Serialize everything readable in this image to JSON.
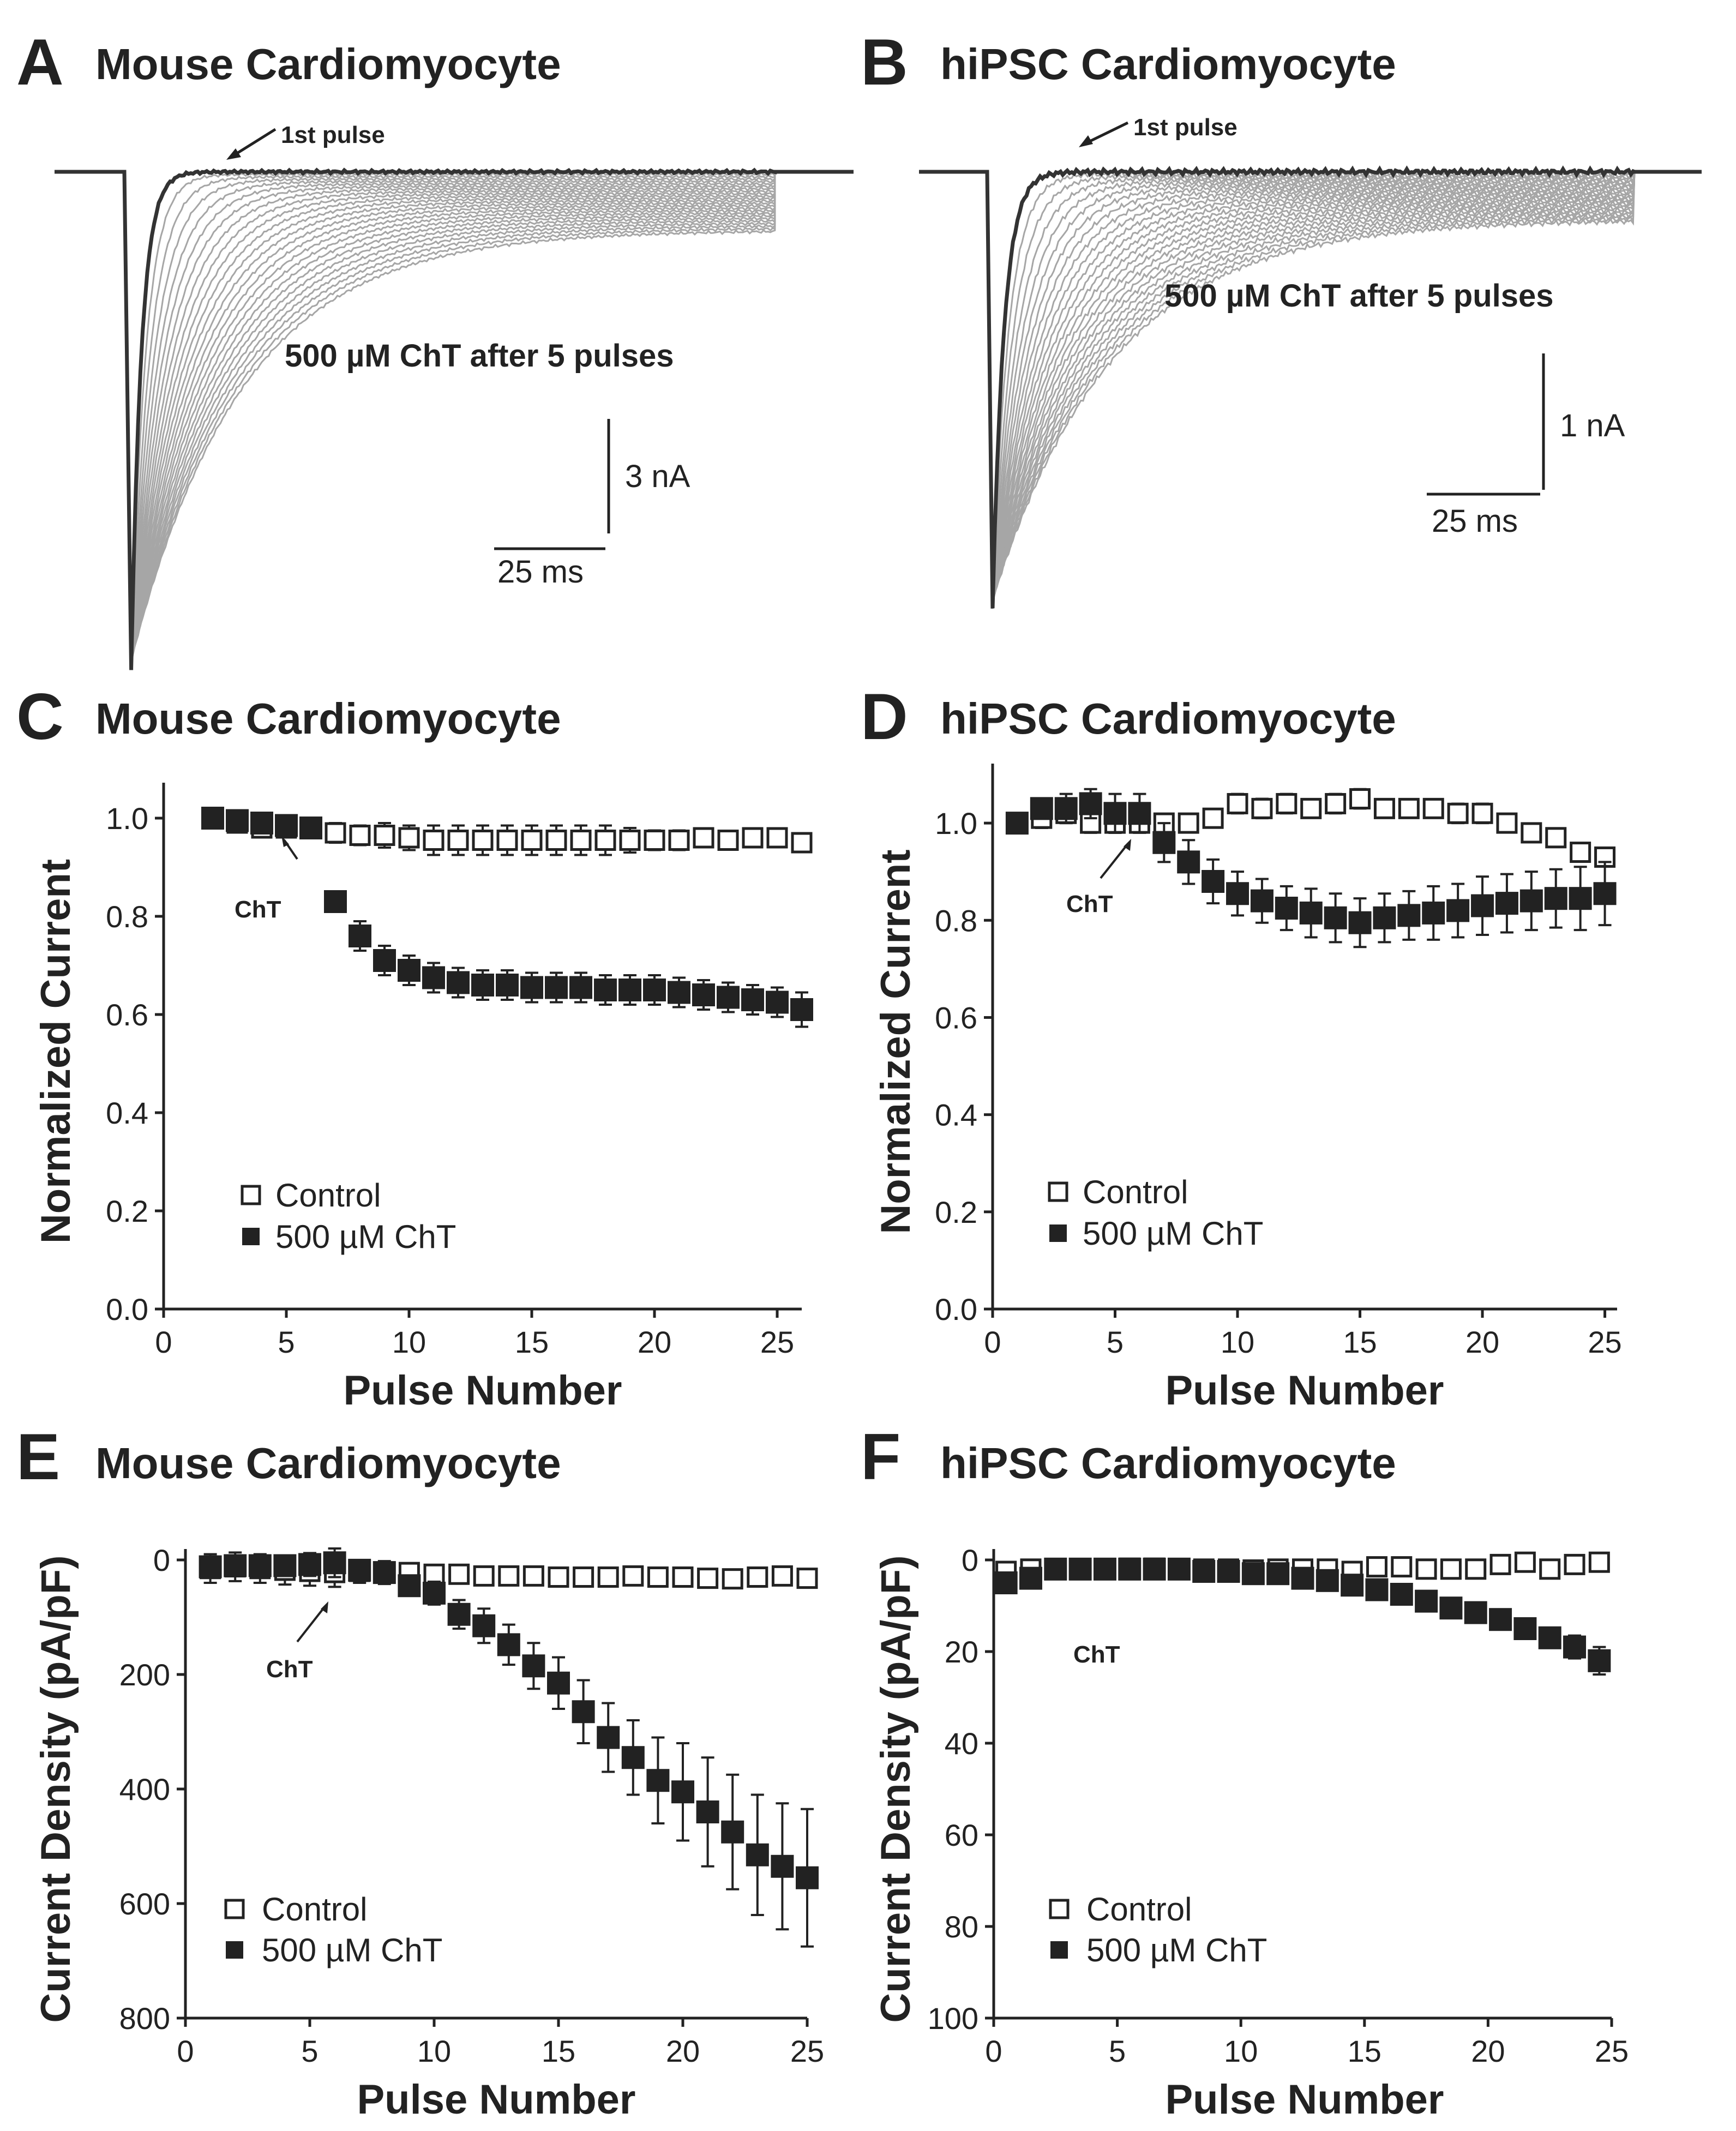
{
  "panels": {
    "A": {
      "letter": "A",
      "title": "Mouse Cardiomyocyte",
      "first_pulse": "1st pulse",
      "annotation": "500 µM ChT after 5 pulses",
      "scale_y": "3 nA",
      "scale_x": "25 ms"
    },
    "B": {
      "letter": "B",
      "title": "hiPSC Cardiomyocyte",
      "first_pulse": "1st pulse",
      "annotation": "500 µM ChT after 5 pulses",
      "scale_y": "1 nA",
      "scale_x": "25 ms"
    },
    "C": {
      "letter": "C",
      "title": "Mouse Cardiomyocyte",
      "cht_label": "ChT"
    },
    "D": {
      "letter": "D",
      "title": "hiPSC Cardiomyocyte",
      "cht_label": "ChT"
    },
    "E": {
      "letter": "E",
      "title": "Mouse Cardiomyocyte",
      "cht_label": "ChT"
    },
    "F": {
      "letter": "F",
      "title": "hiPSC Cardiomyocyte",
      "cht_label": "ChT"
    }
  },
  "legend": {
    "control": "Control",
    "treatment": "500 µM ChT"
  },
  "chart_data": [
    {
      "id": "A",
      "type": "line",
      "title": "Mouse Cardiomyocyte",
      "description_units": {
        "x": "ms",
        "y": "nA"
      },
      "traces": 25,
      "first_pulse_peak": -14.5,
      "steady_state_first": 0.0,
      "steady_state_last": -1.7,
      "scale_bar": {
        "time": "25 ms",
        "current": "3 nA"
      }
    },
    {
      "id": "B",
      "type": "line",
      "title": "hiPSC Cardiomyocyte",
      "description_units": {
        "x": "ms",
        "y": "nA"
      },
      "traces": 25,
      "first_pulse_peak": -3.2,
      "steady_state_first": 0.0,
      "steady_state_last": -0.35,
      "scale_bar": {
        "time": "25 ms",
        "current": "1 nA"
      }
    },
    {
      "id": "C",
      "type": "scatter",
      "title": "Mouse Cardiomyocyte",
      "xlabel": "Pulse Number",
      "ylabel": "Normalized Current",
      "xlim": [
        0,
        26
      ],
      "ylim": [
        0,
        1.05
      ],
      "xticks": [
        "0",
        "5",
        "10",
        "15",
        "20",
        "25"
      ],
      "yticks": [
        "0.0",
        "0.2",
        "0.4",
        "0.6",
        "0.8",
        "1.0"
      ],
      "series": [
        {
          "name": "Control",
          "marker": "open-square",
          "x": [
            2,
            3,
            4,
            5,
            6,
            7,
            8,
            9,
            10,
            11,
            12,
            13,
            14,
            15,
            16,
            17,
            18,
            19,
            20,
            21,
            22,
            23,
            24,
            25,
            26
          ],
          "values": [
            1.0,
            0.99,
            0.98,
            0.98,
            0.98,
            0.97,
            0.965,
            0.965,
            0.96,
            0.955,
            0.955,
            0.955,
            0.955,
            0.955,
            0.955,
            0.955,
            0.955,
            0.955,
            0.955,
            0.955,
            0.96,
            0.955,
            0.96,
            0.96,
            0.95
          ],
          "errors": [
            0.01,
            0.01,
            0.015,
            0.015,
            0.015,
            0.02,
            0.02,
            0.025,
            0.025,
            0.03,
            0.03,
            0.03,
            0.03,
            0.03,
            0.03,
            0.03,
            0.03,
            0.025,
            0.02,
            0.02,
            0.015,
            0.015,
            0.015,
            0.015,
            0.015
          ]
        },
        {
          "name": "500 µM ChT",
          "marker": "filled-square",
          "x": [
            2,
            3,
            4,
            5,
            6,
            7,
            8,
            9,
            10,
            11,
            12,
            13,
            14,
            15,
            16,
            17,
            18,
            19,
            20,
            21,
            22,
            23,
            24,
            25,
            26
          ],
          "values": [
            1.0,
            0.995,
            0.99,
            0.985,
            0.98,
            0.83,
            0.76,
            0.71,
            0.69,
            0.675,
            0.665,
            0.66,
            0.66,
            0.655,
            0.655,
            0.655,
            0.65,
            0.65,
            0.65,
            0.645,
            0.64,
            0.635,
            0.63,
            0.625,
            0.61
          ],
          "errors": [
            0.01,
            0.01,
            0.01,
            0.01,
            0.015,
            0.02,
            0.03,
            0.03,
            0.03,
            0.03,
            0.03,
            0.03,
            0.03,
            0.03,
            0.03,
            0.03,
            0.03,
            0.03,
            0.03,
            0.03,
            0.03,
            0.03,
            0.03,
            0.03,
            0.035
          ]
        }
      ]
    },
    {
      "id": "D",
      "type": "scatter",
      "title": "hiPSC Cardiomyocyte",
      "xlabel": "Pulse Number",
      "ylabel": "Normalized Current",
      "xlim": [
        0,
        25.5
      ],
      "ylim": [
        0,
        1.1
      ],
      "xticks": [
        "0",
        "5",
        "10",
        "15",
        "20",
        "25"
      ],
      "yticks": [
        "0.0",
        "0.2",
        "0.4",
        "0.6",
        "0.8",
        "1.0"
      ],
      "series": [
        {
          "name": "Control",
          "marker": "open-square",
          "x": [
            1,
            2,
            3,
            4,
            5,
            6,
            7,
            8,
            9,
            10,
            11,
            12,
            13,
            14,
            15,
            16,
            17,
            18,
            19,
            20,
            21,
            22,
            23,
            24,
            25
          ],
          "values": [
            1.0,
            1.01,
            1.02,
            1.0,
            1.0,
            1.0,
            1.0,
            1.0,
            1.01,
            1.04,
            1.03,
            1.04,
            1.03,
            1.04,
            1.05,
            1.03,
            1.03,
            1.03,
            1.02,
            1.02,
            1.0,
            0.98,
            0.97,
            0.94,
            0.93
          ],
          "errors": [
            0.005,
            0.02,
            0.02,
            0.02,
            0.02,
            0.015,
            0.01,
            0.01,
            0.015,
            0.02,
            0.02,
            0.02,
            0.01,
            0.02,
            0.02,
            0.01,
            0.01,
            0.01,
            0.02,
            0.02,
            0.01,
            0.01,
            0.01,
            0.015,
            0.015
          ]
        },
        {
          "name": "500 µM ChT",
          "marker": "filled-square",
          "x": [
            1,
            2,
            3,
            4,
            5,
            6,
            7,
            8,
            9,
            10,
            11,
            12,
            13,
            14,
            15,
            16,
            17,
            18,
            19,
            20,
            21,
            22,
            23,
            24,
            25
          ],
          "values": [
            1.0,
            1.03,
            1.03,
            1.04,
            1.02,
            1.02,
            0.96,
            0.92,
            0.88,
            0.855,
            0.84,
            0.825,
            0.815,
            0.805,
            0.795,
            0.805,
            0.81,
            0.815,
            0.82,
            0.83,
            0.835,
            0.84,
            0.845,
            0.845,
            0.855
          ],
          "errors": [
            0.005,
            0.02,
            0.03,
            0.03,
            0.04,
            0.04,
            0.04,
            0.045,
            0.045,
            0.045,
            0.045,
            0.045,
            0.05,
            0.05,
            0.05,
            0.05,
            0.05,
            0.055,
            0.055,
            0.06,
            0.06,
            0.06,
            0.06,
            0.065,
            0.065
          ]
        }
      ]
    },
    {
      "id": "E",
      "type": "scatter",
      "title": "Mouse Cardiomyocyte",
      "xlabel": "Pulse Number",
      "ylabel": "Current Density (pA/pF)",
      "xlim": [
        0,
        25
      ],
      "ylim": [
        0,
        800
      ],
      "y_inverted": true,
      "xticks": [
        "0",
        "5",
        "10",
        "15",
        "20",
        "25"
      ],
      "yticks": [
        "0",
        "200",
        "400",
        "600",
        "800"
      ],
      "series": [
        {
          "name": "Control",
          "marker": "open-square",
          "x": [
            1,
            2,
            3,
            4,
            5,
            6,
            7,
            8,
            9,
            10,
            11,
            12,
            13,
            14,
            15,
            16,
            17,
            18,
            19,
            20,
            21,
            22,
            23,
            24,
            25
          ],
          "values": [
            15,
            12,
            15,
            18,
            20,
            22,
            20,
            22,
            22,
            25,
            25,
            28,
            28,
            28,
            30,
            30,
            30,
            28,
            30,
            30,
            32,
            33,
            30,
            28,
            32
          ],
          "errors": [
            25,
            25,
            25,
            25,
            25,
            25,
            20,
            20,
            15,
            12,
            10,
            10,
            10,
            10,
            12,
            12,
            12,
            12,
            12,
            10,
            10,
            10,
            10,
            10,
            10
          ]
        },
        {
          "name": "500 µM ChT",
          "marker": "filled-square",
          "x": [
            1,
            2,
            3,
            4,
            5,
            6,
            7,
            8,
            9,
            10,
            11,
            12,
            13,
            14,
            15,
            16,
            17,
            18,
            19,
            20,
            21,
            22,
            23,
            24,
            25
          ],
          "values": [
            12,
            10,
            10,
            10,
            8,
            5,
            18,
            22,
            45,
            58,
            95,
            115,
            148,
            185,
            215,
            265,
            310,
            345,
            385,
            405,
            440,
            475,
            515,
            535,
            555
          ],
          "errors": [
            15,
            15,
            15,
            15,
            20,
            25,
            15,
            15,
            15,
            20,
            25,
            30,
            35,
            40,
            45,
            55,
            60,
            65,
            75,
            85,
            95,
            100,
            105,
            110,
            120
          ]
        }
      ]
    },
    {
      "id": "F",
      "type": "scatter",
      "title": "hiPSC Cardiomyocyte",
      "xlabel": "Pulse Number",
      "ylabel": "Current Density (pA/pF)",
      "xlim": [
        0,
        25
      ],
      "ylim": [
        0,
        100
      ],
      "y_inverted": true,
      "xticks": [
        "0",
        "5",
        "10",
        "15",
        "20",
        "25"
      ],
      "yticks": [
        "0",
        "20",
        "40",
        "60",
        "80",
        "100"
      ],
      "series": [
        {
          "name": "Control",
          "marker": "open-square",
          "x": [
            0.5,
            1.5,
            2.5,
            3.5,
            4.5,
            5.5,
            6.5,
            7.5,
            8.5,
            9.5,
            10.5,
            11.5,
            12.5,
            13.5,
            14.5,
            15.5,
            16.5,
            17.5,
            18.5,
            19.5,
            20.5,
            21.5,
            22.5,
            23.5,
            24.5
          ],
          "values": [
            2.5,
            2.0,
            2.0,
            2.0,
            2.0,
            1.8,
            1.8,
            2.0,
            2.0,
            2.0,
            2.2,
            2.0,
            2.0,
            2.0,
            2.5,
            1.5,
            1.5,
            2.0,
            2.0,
            2.0,
            1.0,
            0.5,
            2.0,
            1.0,
            0.5
          ],
          "errors": [
            1.5,
            1.5,
            1.5,
            1.5,
            1.5,
            1.5,
            1.5,
            1.5,
            1.5,
            1.5,
            1.5,
            1.5,
            1.5,
            1.5,
            1.5,
            1.5,
            1.5,
            1.5,
            1.5,
            1.5,
            1.0,
            1.0,
            1.5,
            1.0,
            1.0
          ]
        },
        {
          "name": "500 µM ChT",
          "marker": "filled-square",
          "x": [
            0.5,
            1.5,
            2.5,
            3.5,
            4.5,
            5.5,
            6.5,
            7.5,
            8.5,
            9.5,
            10.5,
            11.5,
            12.5,
            13.5,
            14.5,
            15.5,
            16.5,
            17.5,
            18.5,
            19.5,
            20.5,
            21.5,
            22.5,
            23.5,
            24.5
          ],
          "values": [
            5.0,
            4.0,
            2.0,
            2.0,
            2.0,
            2.0,
            2.0,
            2.0,
            2.5,
            2.5,
            3.0,
            3.0,
            4.0,
            4.5,
            5.5,
            6.5,
            7.5,
            9.0,
            10.5,
            11.5,
            13.0,
            15.0,
            17.0,
            19.0,
            22.0
          ],
          "errors": [
            1.0,
            1.0,
            1.0,
            1.0,
            1.0,
            1.0,
            1.0,
            1.0,
            1.0,
            1.0,
            1.0,
            1.0,
            1.0,
            1.0,
            1.0,
            1.0,
            1.0,
            1.0,
            1.2,
            1.2,
            1.5,
            2.0,
            2.0,
            2.5,
            3.0
          ]
        }
      ]
    }
  ]
}
